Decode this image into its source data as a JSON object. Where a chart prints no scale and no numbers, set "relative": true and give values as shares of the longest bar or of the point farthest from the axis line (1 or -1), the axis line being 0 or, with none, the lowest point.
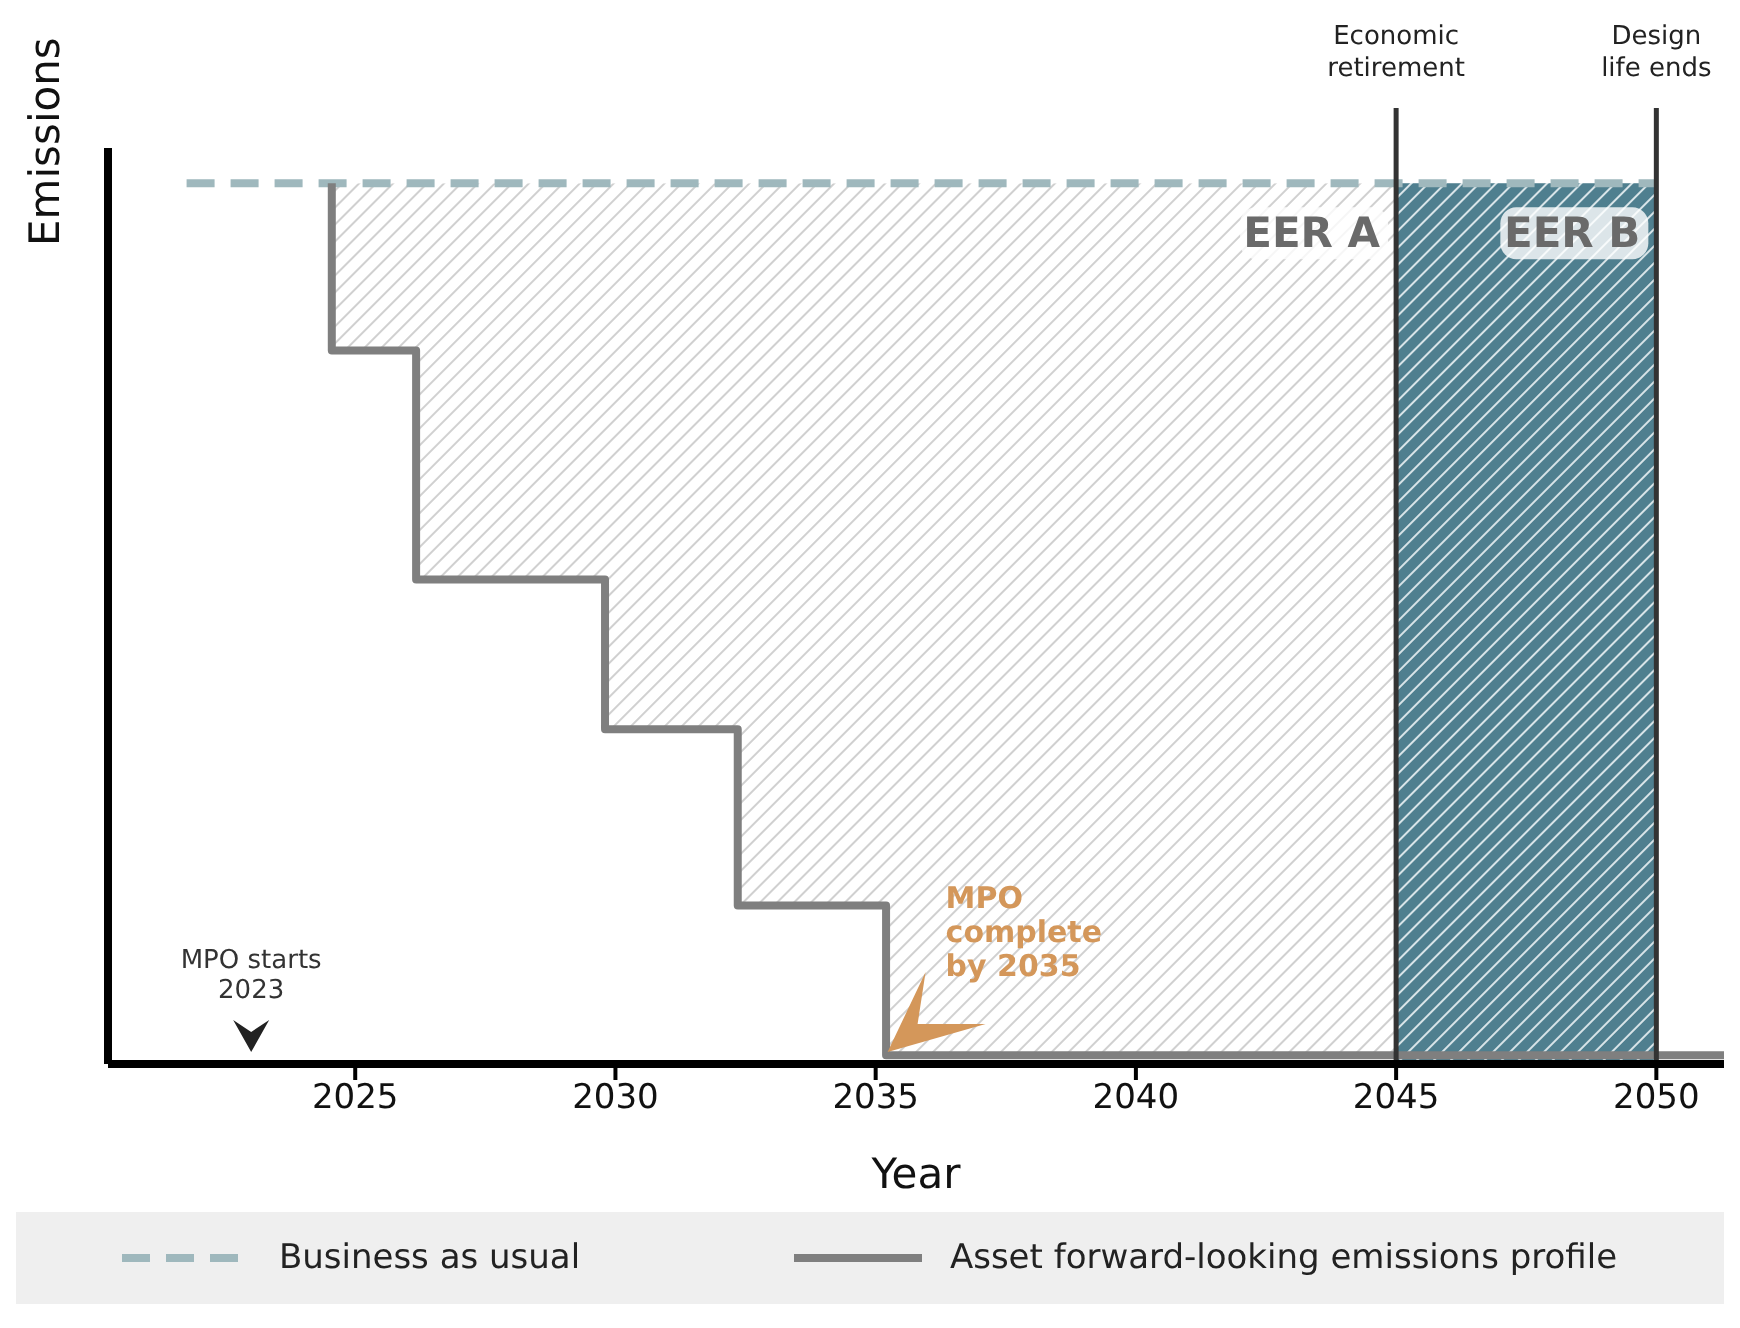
{
  "chart_data": {
    "type": "line",
    "relative": true,
    "xlabel": "Year",
    "ylabel": "Emissions",
    "xlim": [
      2020.25,
      2051.3
    ],
    "xticks": [
      2025,
      2030,
      2035,
      2040,
      2045,
      2050
    ],
    "series": [
      {
        "name": "Business as usual",
        "color": "#9fb8bd",
        "line_style": "dashed",
        "x": [
          2021.76,
          2050
        ],
        "values": [
          1,
          1
        ]
      },
      {
        "name": "Asset forward-looking emissions profile",
        "type": "step",
        "color": "#7f7f7f",
        "x": [
          2024.55,
          2024.55,
          2026.17,
          2029.8,
          2032.35,
          2035.2,
          2051.3
        ],
        "values": [
          1,
          0.81,
          0.55,
          0.38,
          0.18,
          0.01,
          0.01
        ]
      }
    ],
    "bands": [
      {
        "axis": "x",
        "from": 2024.55,
        "to": 2045,
        "label": "EER A",
        "color": "#d0d0d0"
      },
      {
        "axis": "x",
        "from": 2045,
        "to": 2050,
        "label": "EER B",
        "color": "#4f7f8f"
      }
    ],
    "ref_lines": [
      {
        "axis": "x",
        "value": 2045,
        "label": "Economic\nretirement",
        "color": "#333333"
      },
      {
        "axis": "x",
        "value": 2050,
        "label": "Design\nlife ends",
        "color": "#333333"
      }
    ],
    "annotations": [
      "MPO starts\n2023",
      "MPO\ncomplete\nby 2035"
    ],
    "legend": "bottom",
    "grid": false,
    "marker": "none"
  }
}
